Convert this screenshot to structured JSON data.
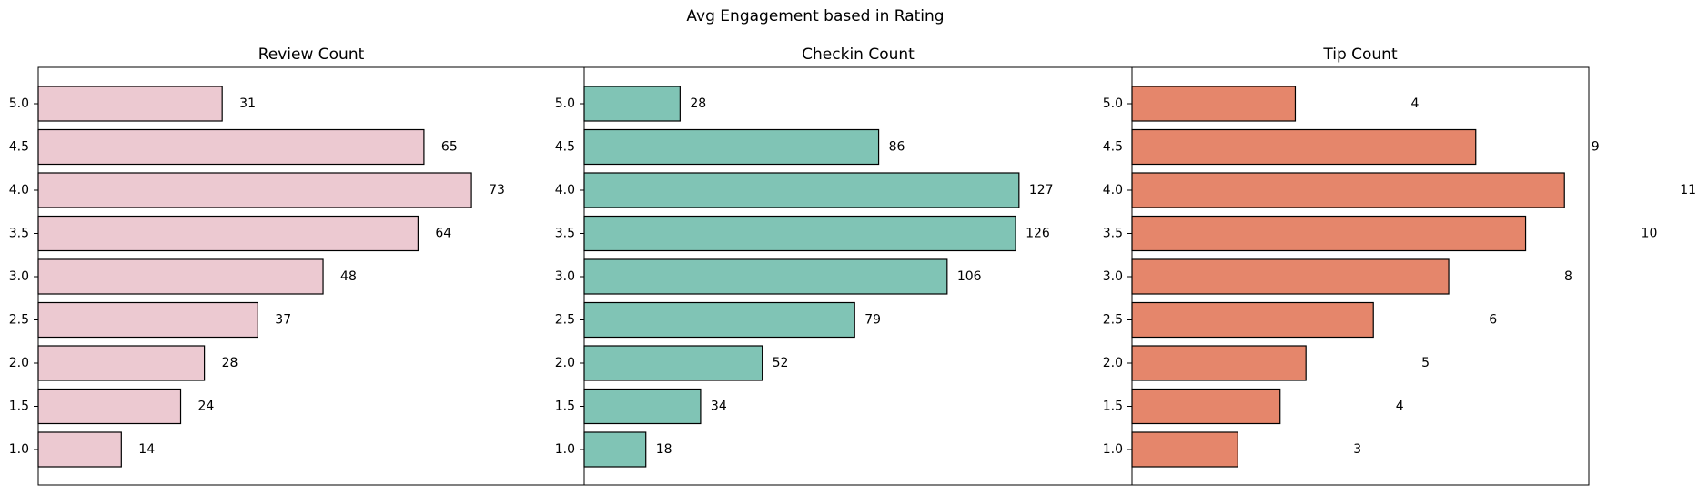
{
  "title": "Avg Engagement based in Rating",
  "chart_data": [
    {
      "type": "barh",
      "title": "Review Count",
      "color": "#ecc9d1",
      "categories": [
        "5.0",
        "4.5",
        "4.0",
        "3.5",
        "3.0",
        "2.5",
        "2.0",
        "1.5",
        "1.0"
      ],
      "values": [
        31,
        65,
        73,
        64,
        48,
        37,
        28,
        24,
        14
      ],
      "xlim": [
        0,
        92
      ]
    },
    {
      "type": "barh",
      "title": "Checkin Count",
      "color": "#80c4b5",
      "categories": [
        "5.0",
        "4.5",
        "4.0",
        "3.5",
        "3.0",
        "2.5",
        "2.0",
        "1.5",
        "1.0"
      ],
      "values": [
        28,
        86,
        127,
        126,
        106,
        79,
        52,
        34,
        18
      ],
      "xlim": [
        0,
        160
      ]
    },
    {
      "type": "barh",
      "title": "Tip Count",
      "color": "#e5866b",
      "categories": [
        "5.0",
        "4.5",
        "4.0",
        "3.5",
        "3.0",
        "2.5",
        "2.0",
        "1.5",
        "1.0"
      ],
      "values": [
        4.29,
        9.03,
        11.36,
        10.34,
        8.32,
        6.34,
        4.57,
        3.89,
        2.78
      ],
      "value_labels": [
        "4",
        "9",
        "11",
        "10",
        "8",
        "6",
        "5",
        "4",
        "3"
      ],
      "xlim": [
        0,
        12
      ]
    }
  ]
}
